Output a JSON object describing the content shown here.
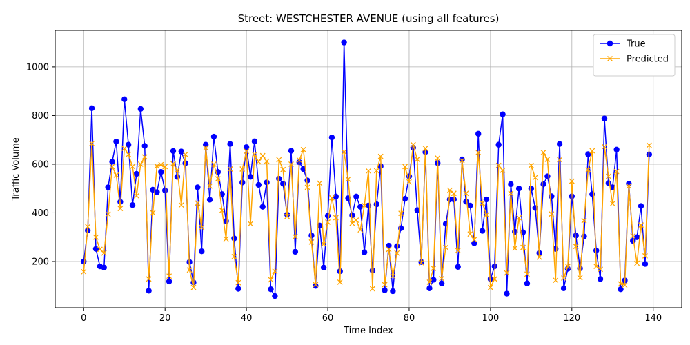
{
  "chart_data": {
    "type": "line",
    "title": "Street: WESTCHESTER AVENUE (using all features)",
    "xlabel": "Time Index",
    "ylabel": "Traffic Volume",
    "xlim": [
      -7,
      147
    ],
    "ylim": [
      10,
      1150
    ],
    "xticks": [
      0,
      20,
      40,
      60,
      80,
      100,
      120,
      140
    ],
    "yticks": [
      200,
      400,
      600,
      800,
      1000
    ],
    "grid": true,
    "legend_position": "top-right",
    "series": [
      {
        "name": "True",
        "color": "#0000ff",
        "marker": "circle",
        "values": [
          200,
          328,
          830,
          252,
          180,
          175,
          505,
          610,
          693,
          445,
          867,
          680,
          432,
          560,
          827,
          675,
          80,
          495,
          485,
          568,
          492,
          118,
          654,
          548,
          652,
          604,
          198,
          114,
          505,
          242,
          680,
          454,
          713,
          568,
          477,
          366,
          683,
          295,
          88,
          525,
          670,
          548,
          694,
          515,
          425,
          525,
          86,
          58,
          540,
          520,
          393,
          655,
          240,
          608,
          580,
          533,
          307,
          100,
          348,
          175,
          388,
          710,
          467,
          160,
          1100,
          460,
          390,
          467,
          425,
          238,
          430,
          163,
          435,
          592,
          82,
          265,
          78,
          263,
          337,
          458,
          550,
          668,
          411,
          198,
          650,
          90,
          125,
          605,
          110,
          355,
          455,
          455,
          178,
          620,
          446,
          430,
          275,
          725,
          326,
          455,
          128,
          180,
          680,
          805,
          68,
          518,
          322,
          500,
          320,
          110,
          500,
          420,
          235,
          518,
          550,
          468,
          252,
          683,
          90,
          170,
          468,
          307,
          172,
          303,
          641,
          477,
          245,
          128,
          788,
          522,
          505,
          660,
          86,
          122,
          520,
          285,
          300,
          428,
          190,
          640
        ]
      },
      {
        "name": "Predicted",
        "color": "#ffa500",
        "marker": "x",
        "values": [
          158,
          343,
          685,
          300,
          250,
          235,
          395,
          590,
          555,
          418,
          665,
          640,
          590,
          470,
          600,
          630,
          128,
          400,
          592,
          598,
          590,
          140,
          602,
          575,
          432,
          640,
          165,
          93,
          440,
          340,
          667,
          510,
          600,
          540,
          410,
          293,
          580,
          220,
          113,
          580,
          653,
          355,
          640,
          610,
          635,
          612,
          125,
          160,
          618,
          578,
          385,
          600,
          302,
          617,
          660,
          505,
          280,
          105,
          522,
          272,
          362,
          462,
          380,
          115,
          650,
          538,
          357,
          370,
          330,
          430,
          572,
          88,
          573,
          632,
          105,
          250,
          140,
          235,
          398,
          590,
          527,
          680,
          620,
          195,
          665,
          115,
          172,
          625,
          130,
          258,
          493,
          480,
          245,
          615,
          480,
          313,
          290,
          648,
          440,
          392,
          93,
          128,
          595,
          575,
          153,
          480,
          255,
          380,
          258,
          148,
          595,
          545,
          218,
          648,
          620,
          395,
          123,
          618,
          132,
          180,
          530,
          262,
          133,
          368,
          577,
          655,
          180,
          168,
          672,
          550,
          438,
          570,
          108,
          103,
          510,
          305,
          193,
          350,
          223,
          678
        ]
      }
    ]
  }
}
